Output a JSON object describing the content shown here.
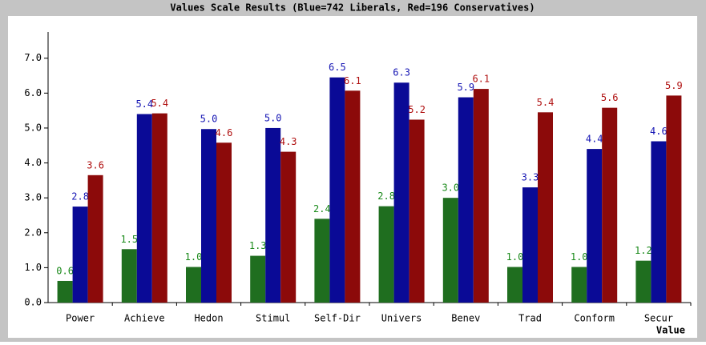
{
  "chart_data": {
    "type": "bar",
    "title": "Values Scale Results (Blue=742 Liberals, Red=196 Conservatives)",
    "x_label": "Value",
    "categories": [
      "Power",
      "Achieve",
      "Hedon",
      "Stimul",
      "Self-Dir",
      "Univers",
      "Benev",
      "Trad",
      "Conform",
      "Secur"
    ],
    "series": [
      {
        "color": "#1f6e1f",
        "label_color": "#1a8a1a",
        "values": [
          0.62,
          1.53,
          1.02,
          1.34,
          2.4,
          2.76,
          3.0,
          1.02,
          1.02,
          1.2
        ],
        "value_labels": [
          "0.6",
          "1.5",
          "1.0",
          "1.3",
          "2.4",
          "2.8",
          "3.0",
          "1.0",
          "1.0",
          "1.2"
        ]
      },
      {
        "color": "#0a0a96",
        "label_color": "#1515b4",
        "values": [
          2.75,
          5.4,
          4.97,
          5.0,
          6.45,
          6.3,
          5.88,
          3.3,
          4.4,
          4.62
        ],
        "value_labels": [
          "2.8",
          "5.4",
          "5.0",
          "5.0",
          "6.5",
          "6.3",
          "5.9",
          "3.3",
          "4.4",
          "4.6"
        ]
      },
      {
        "color": "#8c0a0a",
        "label_color": "#b01010",
        "values": [
          3.65,
          5.42,
          4.58,
          4.32,
          6.07,
          5.24,
          6.12,
          5.45,
          5.58,
          5.93
        ],
        "value_labels": [
          "3.6",
          "5.4",
          "4.6",
          "4.3",
          "6.1",
          "5.2",
          "6.1",
          "5.4",
          "5.6",
          "5.9"
        ]
      }
    ],
    "ylim": [
      0,
      7.75
    ],
    "yticks": [
      {
        "value": 0,
        "label": "0.0"
      },
      {
        "value": 1,
        "label": "1.0"
      },
      {
        "value": 2,
        "label": "2.0"
      },
      {
        "value": 3,
        "label": "3.0"
      },
      {
        "value": 4,
        "label": "4.0"
      },
      {
        "value": 5,
        "label": "5.0"
      },
      {
        "value": 6,
        "label": "6.0"
      },
      {
        "value": 7,
        "label": "7.0"
      }
    ]
  }
}
